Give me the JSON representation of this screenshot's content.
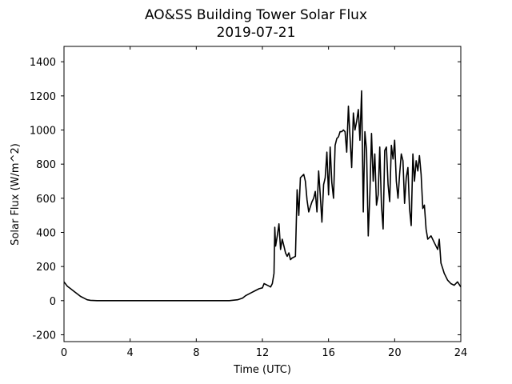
{
  "chart_data": {
    "type": "line",
    "title": "AO&SS Building Tower Solar Flux",
    "subtitle": "2019-07-21",
    "xlabel": "Time (UTC)",
    "ylabel": "Solar Flux (W/m^2)",
    "xlim": [
      0,
      24
    ],
    "ylim": [
      -240,
      1490
    ],
    "x_ticks": [
      0,
      4,
      8,
      12,
      16,
      20,
      24
    ],
    "y_ticks": [
      -200,
      0,
      200,
      400,
      600,
      800,
      1000,
      1200,
      1400
    ],
    "grid": false,
    "line_color": "#000000",
    "series": [
      {
        "x": [
          0,
          0.2,
          0.4,
          0.6,
          0.8,
          1.0,
          1.2,
          1.4,
          1.6,
          2.0,
          3.0,
          4.0,
          6.0,
          8.0,
          10.0,
          10.5,
          10.8,
          11.0,
          11.3,
          11.6,
          11.8,
          12.0,
          12.1,
          12.3,
          12.5,
          12.6,
          12.7,
          12.75,
          12.8,
          12.9,
          13.0,
          13.1,
          13.2,
          13.3,
          13.4,
          13.5,
          13.6,
          13.7,
          13.8,
          14.0,
          14.1,
          14.2,
          14.3,
          14.4,
          14.5,
          14.6,
          14.7,
          14.8,
          14.9,
          15.0,
          15.1,
          15.2,
          15.3,
          15.4,
          15.5,
          15.6,
          15.7,
          15.8,
          15.9,
          16.0,
          16.1,
          16.2,
          16.3,
          16.4,
          16.5,
          16.6,
          16.7,
          16.8,
          16.9,
          17.0,
          17.1,
          17.2,
          17.3,
          17.4,
          17.5,
          17.6,
          17.7,
          17.8,
          17.9,
          18.0,
          18.1,
          18.2,
          18.3,
          18.4,
          18.5,
          18.6,
          18.7,
          18.8,
          18.9,
          19.0,
          19.1,
          19.2,
          19.3,
          19.4,
          19.5,
          19.6,
          19.7,
          19.8,
          19.9,
          20.0,
          20.1,
          20.2,
          20.3,
          20.4,
          20.5,
          20.6,
          20.7,
          20.8,
          20.9,
          21.0,
          21.1,
          21.2,
          21.3,
          21.4,
          21.5,
          21.6,
          21.7,
          21.8,
          21.9,
          22.0,
          22.2,
          22.4,
          22.6,
          22.7,
          22.8,
          22.9,
          23.0,
          23.2,
          23.4,
          23.6,
          23.8,
          24.0
        ],
        "y": [
          110,
          85,
          70,
          55,
          40,
          25,
          15,
          5,
          2,
          0,
          0,
          0,
          0,
          0,
          0,
          5,
          15,
          30,
          45,
          60,
          70,
          75,
          100,
          90,
          80,
          100,
          160,
          430,
          320,
          380,
          450,
          300,
          360,
          320,
          280,
          260,
          280,
          240,
          250,
          260,
          650,
          500,
          720,
          730,
          740,
          700,
          590,
          520,
          550,
          580,
          600,
          640,
          520,
          760,
          620,
          460,
          680,
          720,
          870,
          620,
          900,
          690,
          600,
          910,
          950,
          960,
          990,
          990,
          1000,
          990,
          870,
          1140,
          960,
          780,
          1100,
          1000,
          1050,
          1120,
          940,
          1230,
          520,
          990,
          880,
          380,
          620,
          980,
          700,
          860,
          560,
          620,
          900,
          560,
          420,
          880,
          900,
          680,
          580,
          910,
          830,
          940,
          700,
          600,
          740,
          860,
          820,
          570,
          720,
          780,
          540,
          440,
          860,
          700,
          820,
          760,
          850,
          740,
          540,
          560,
          420,
          360,
          380,
          340,
          300,
          360,
          220,
          190,
          160,
          120,
          100,
          90,
          110,
          80
        ]
      }
    ]
  }
}
